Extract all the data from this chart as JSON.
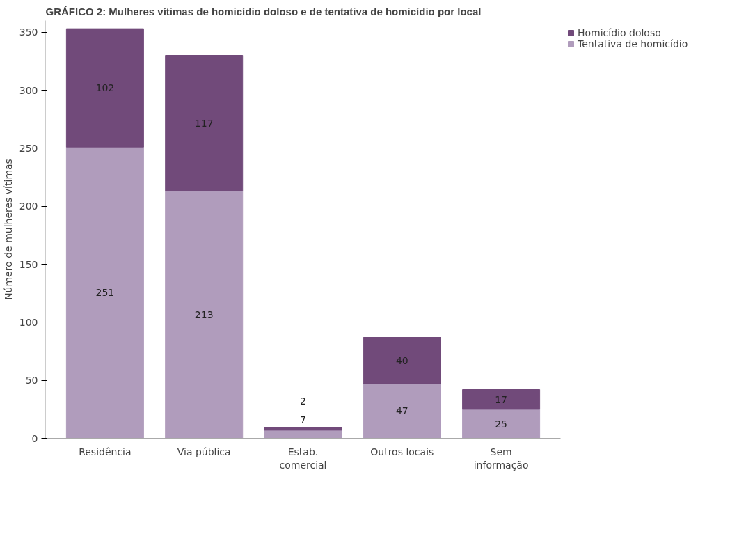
{
  "chart_data": {
    "type": "bar",
    "title": "GRÁFICO 2: Mulheres vítimas de homicídio doloso e de tentativa de homicídio por local",
    "ylabel": "Número de mulheres vítimas",
    "categories": [
      "Residência",
      "Via pública",
      "Estab.\ncomercial",
      "Outros locais",
      "Sem\ninformação"
    ],
    "stacked": true,
    "series": [
      {
        "name": "Tentativa de homicídio",
        "color": "#b09cbc",
        "values": [
          251,
          213,
          7,
          47,
          25
        ]
      },
      {
        "name": "Homicídio doloso",
        "color": "#714a7a",
        "values": [
          102,
          117,
          2,
          40,
          17
        ]
      }
    ],
    "ylim": [
      0,
      360
    ],
    "yticks": [
      0,
      50,
      100,
      150,
      200,
      250,
      300,
      350
    ],
    "grid": false,
    "legend": "top right",
    "data_labels": true
  }
}
